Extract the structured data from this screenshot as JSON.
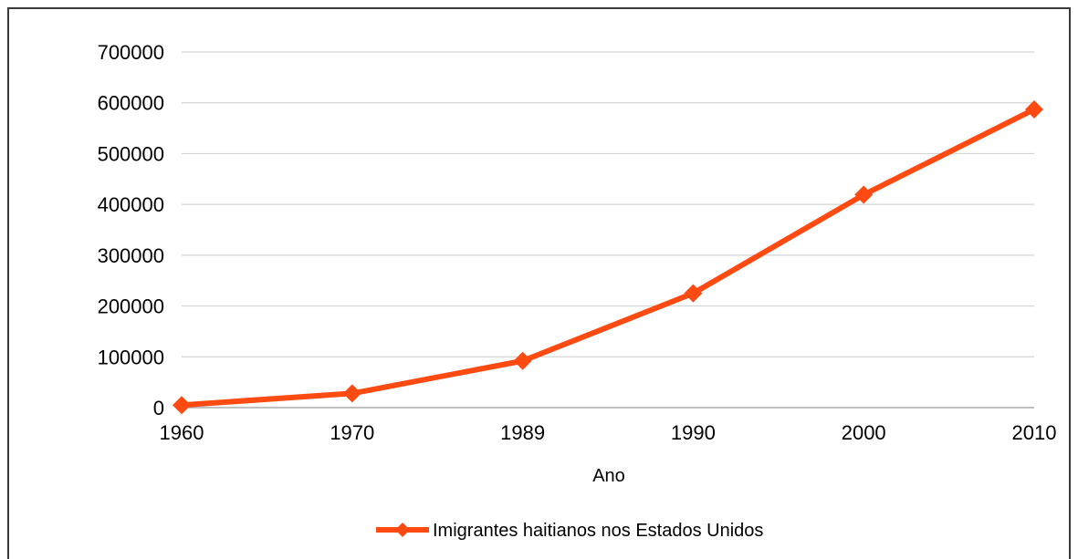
{
  "chart_data": {
    "type": "line",
    "categories": [
      "1960",
      "1970",
      "1989",
      "1990",
      "2000",
      "2010"
    ],
    "series": [
      {
        "name": "Imigrantes haitianos nos Estados Unidos",
        "values": [
          5000,
          28000,
          92000,
          225000,
          419000,
          587000
        ],
        "color": "#ff4a12"
      }
    ],
    "xlabel": "Ano",
    "ylabel": "",
    "ylim": [
      0,
      700000
    ],
    "yticks": [
      "0",
      "100000",
      "200000",
      "300000",
      "400000",
      "500000",
      "600000",
      "700000"
    ],
    "grid": true,
    "legend": "bottom"
  }
}
